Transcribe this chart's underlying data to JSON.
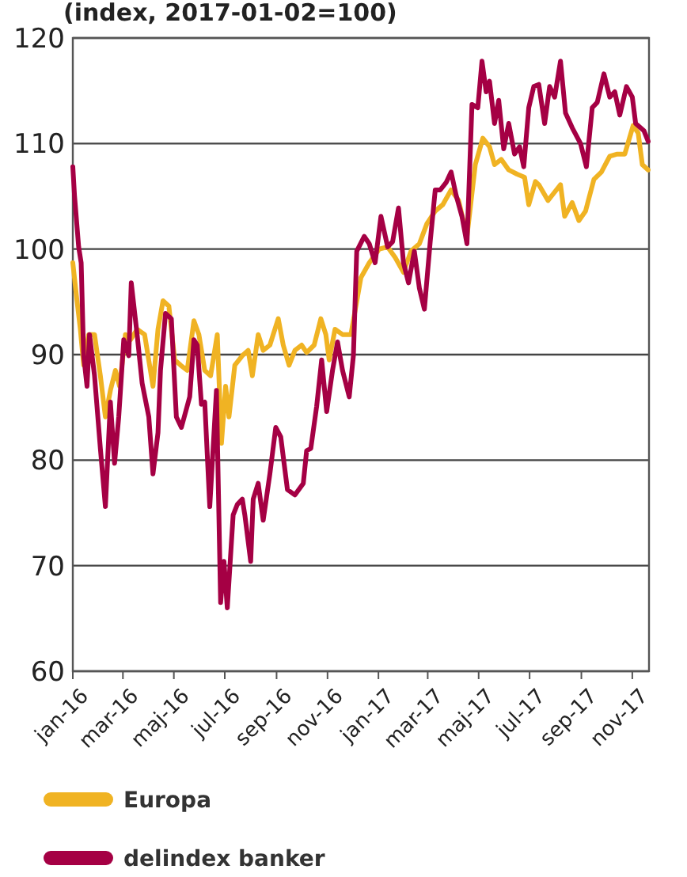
{
  "chart_data": {
    "type": "line",
    "title": "(index, 2017-01-02=100)",
    "xlim": [
      "2016-01-01",
      "2017-11-21"
    ],
    "xticks": [
      {
        "value": "2016-01-01",
        "label": "jan-16"
      },
      {
        "value": "2016-03-01",
        "label": "mar-16"
      },
      {
        "value": "2016-05-01",
        "label": "maj-16"
      },
      {
        "value": "2016-07-01",
        "label": "jul-16"
      },
      {
        "value": "2016-09-01",
        "label": "sep-16"
      },
      {
        "value": "2016-11-01",
        "label": "nov-16"
      },
      {
        "value": "2017-01-01",
        "label": "jan-17"
      },
      {
        "value": "2017-03-01",
        "label": "mar-17"
      },
      {
        "value": "2017-05-01",
        "label": "maj-17"
      },
      {
        "value": "2017-07-01",
        "label": "jul-17"
      },
      {
        "value": "2017-09-01",
        "label": "sep-17"
      },
      {
        "value": "2017-11-01",
        "label": "nov-17"
      }
    ],
    "ylim": [
      60,
      120
    ],
    "yticks": [
      60,
      70,
      80,
      90,
      100,
      110,
      120
    ],
    "grid": "y",
    "legend": "bottom",
    "line_style": "solid",
    "series": [
      {
        "name": "Europa",
        "color": "#f0b323",
        "x": [
          "2016-01-01",
          "2016-01-05",
          "2016-01-10",
          "2016-01-14",
          "2016-01-20",
          "2016-01-27",
          "2016-02-03",
          "2016-02-09",
          "2016-02-15",
          "2016-02-21",
          "2016-02-26",
          "2016-03-04",
          "2016-03-10",
          "2016-03-18",
          "2016-03-27",
          "2016-04-06",
          "2016-04-12",
          "2016-04-18",
          "2016-04-25",
          "2016-05-02",
          "2016-05-09",
          "2016-05-17",
          "2016-05-25",
          "2016-05-31",
          "2016-06-07",
          "2016-06-14",
          "2016-06-22",
          "2016-06-27",
          "2016-07-02",
          "2016-07-06",
          "2016-07-13",
          "2016-07-22",
          "2016-07-29",
          "2016-08-03",
          "2016-08-10",
          "2016-08-16",
          "2016-08-24",
          "2016-09-03",
          "2016-09-09",
          "2016-09-16",
          "2016-09-23",
          "2016-10-01",
          "2016-10-07",
          "2016-10-16",
          "2016-10-24",
          "2016-10-30",
          "2016-11-03",
          "2016-11-10",
          "2016-11-19",
          "2016-11-29",
          "2016-12-11",
          "2016-12-21",
          "2017-01-02",
          "2017-01-12",
          "2017-01-21",
          "2017-01-31",
          "2017-02-09",
          "2017-02-19",
          "2017-02-28",
          "2017-03-10",
          "2017-03-19",
          "2017-03-29",
          "2017-04-07",
          "2017-04-17",
          "2017-04-27",
          "2017-05-06",
          "2017-05-14",
          "2017-05-20",
          "2017-05-28",
          "2017-06-06",
          "2017-06-16",
          "2017-06-25",
          "2017-06-30",
          "2017-07-08",
          "2017-07-12",
          "2017-07-23",
          "2017-07-30",
          "2017-08-07",
          "2017-08-12",
          "2017-08-21",
          "2017-08-29",
          "2017-09-06",
          "2017-09-16",
          "2017-09-25",
          "2017-10-05",
          "2017-10-14",
          "2017-10-23",
          "2017-11-02",
          "2017-11-08",
          "2017-11-13",
          "2017-11-20"
        ],
        "values": [
          98.7,
          95.8,
          92.4,
          89.0,
          91.9,
          91.9,
          88,
          84.1,
          86.6,
          88.5,
          87,
          91.9,
          91.4,
          92.4,
          91.9,
          87,
          92.4,
          95.1,
          94.6,
          89.5,
          89.0,
          88.5,
          93.2,
          91.9,
          88.5,
          88,
          91.9,
          81.6,
          87,
          84.1,
          89.0,
          89.9,
          90.4,
          88,
          91.9,
          90.4,
          90.9,
          93.4,
          90.9,
          89.0,
          90.4,
          90.9,
          90.2,
          90.9,
          93.4,
          91.9,
          89.5,
          92.4,
          91.9,
          91.9,
          97.3,
          98.7,
          100,
          100.2,
          99.2,
          97.8,
          99.8,
          100.5,
          102.4,
          103.6,
          104.2,
          105.6,
          104.6,
          101.2,
          108.0,
          110.5,
          109.7,
          108.0,
          108.5,
          107.5,
          107.1,
          106.8,
          104.2,
          106.4,
          106.1,
          104.6,
          105.3,
          106.1,
          103.1,
          104.4,
          102.7,
          103.6,
          106.6,
          107.3,
          108.8,
          109.0,
          109.0,
          111.7,
          111.0,
          108.0,
          107.5
        ]
      },
      {
        "name": "delindex banker",
        "color": "#a50044",
        "x": [
          "2016-01-01",
          "2016-01-03",
          "2016-01-08",
          "2016-01-11",
          "2016-01-14",
          "2016-01-18",
          "2016-01-21",
          "2016-01-27",
          "2016-02-03",
          "2016-02-09",
          "2016-02-15",
          "2016-02-20",
          "2016-02-25",
          "2016-03-02",
          "2016-03-08",
          "2016-03-11",
          "2016-03-18",
          "2016-03-24",
          "2016-04-01",
          "2016-04-06",
          "2016-04-12",
          "2016-04-15",
          "2016-04-21",
          "2016-04-28",
          "2016-05-04",
          "2016-05-10",
          "2016-05-20",
          "2016-05-25",
          "2016-05-29",
          "2016-06-03",
          "2016-06-07",
          "2016-06-13",
          "2016-06-21",
          "2016-06-26",
          "2016-06-30",
          "2016-07-04",
          "2016-07-11",
          "2016-07-16",
          "2016-07-22",
          "2016-07-25",
          "2016-08-01",
          "2016-08-04",
          "2016-08-10",
          "2016-08-16",
          "2016-08-24",
          "2016-08-31",
          "2016-09-06",
          "2016-09-14",
          "2016-09-23",
          "2016-10-03",
          "2016-10-07",
          "2016-10-12",
          "2016-10-19",
          "2016-10-25",
          "2016-10-31",
          "2016-11-07",
          "2016-11-13",
          "2016-11-19",
          "2016-11-27",
          "2016-12-02",
          "2016-12-06",
          "2016-12-15",
          "2016-12-21",
          "2016-12-28",
          "2017-01-04",
          "2017-01-12",
          "2017-01-18",
          "2017-01-25",
          "2017-01-31",
          "2017-02-06",
          "2017-02-13",
          "2017-02-19",
          "2017-02-25",
          "2017-03-04",
          "2017-03-10",
          "2017-03-16",
          "2017-03-23",
          "2017-03-29",
          "2017-04-04",
          "2017-04-11",
          "2017-04-17",
          "2017-04-23",
          "2017-04-30",
          "2017-05-05",
          "2017-05-10",
          "2017-05-14",
          "2017-05-20",
          "2017-05-25",
          "2017-05-31",
          "2017-06-06",
          "2017-06-13",
          "2017-06-19",
          "2017-06-24",
          "2017-06-30",
          "2017-07-06",
          "2017-07-12",
          "2017-07-19",
          "2017-07-25",
          "2017-07-31",
          "2017-08-07",
          "2017-08-13",
          "2017-08-21",
          "2017-08-31",
          "2017-09-07",
          "2017-09-14",
          "2017-09-20",
          "2017-09-28",
          "2017-10-05",
          "2017-10-11",
          "2017-10-17",
          "2017-10-25",
          "2017-11-01",
          "2017-11-05",
          "2017-11-15",
          "2017-11-20"
        ],
        "values": [
          107.8,
          105.1,
          100.2,
          98.7,
          89.9,
          87,
          91.9,
          88,
          81.1,
          75.6,
          85.5,
          79.7,
          84.1,
          91.4,
          89.9,
          96.8,
          91.9,
          87.3,
          84.1,
          78.7,
          82.6,
          88.5,
          93.9,
          93.4,
          84.1,
          83.1,
          86.0,
          91.4,
          90.9,
          85.3,
          85.5,
          75.6,
          86.6,
          66.5,
          70.4,
          66.0,
          74.8,
          75.8,
          76.3,
          74.8,
          70.4,
          76.3,
          77.8,
          74.3,
          78.7,
          83.1,
          82.2,
          77.2,
          76.7,
          77.8,
          80.9,
          81.1,
          85.1,
          89.5,
          84.6,
          88.5,
          91.2,
          88.5,
          86.0,
          89.9,
          99.8,
          101.2,
          100.5,
          98.7,
          103.1,
          100.2,
          100.7,
          103.9,
          98.7,
          96.8,
          99.8,
          96.3,
          94.3,
          100.7,
          105.6,
          105.6,
          106.3,
          107.3,
          105.1,
          103.1,
          100.5,
          113.7,
          113.4,
          117.8,
          114.9,
          115.9,
          111.9,
          114.1,
          109.5,
          111.9,
          109.0,
          109.7,
          107.8,
          113.4,
          115.4,
          115.6,
          111.9,
          115.4,
          114.4,
          117.8,
          112.9,
          111.5,
          110.0,
          107.8,
          113.4,
          113.9,
          116.6,
          114.4,
          114.9,
          112.7,
          115.4,
          114.4,
          111.9,
          111.2,
          110.2
        ]
      }
    ]
  }
}
